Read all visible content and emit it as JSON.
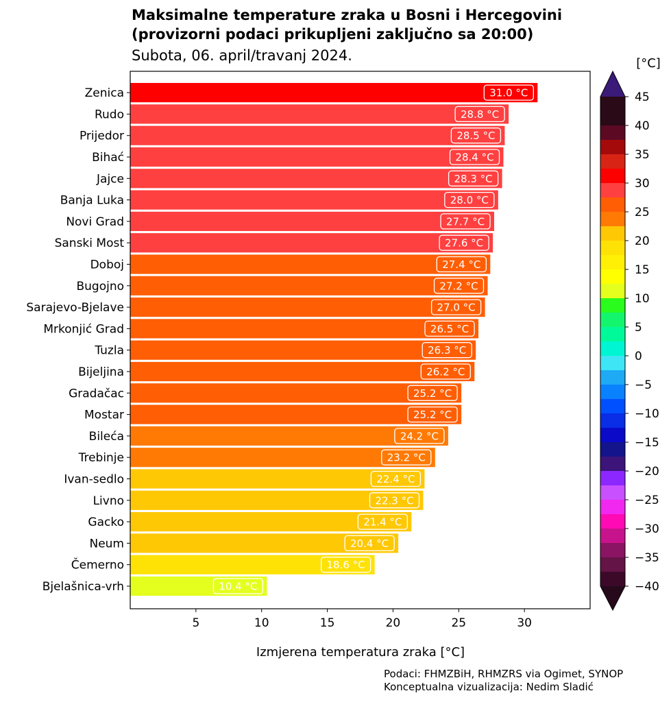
{
  "chart_data": {
    "type": "bar",
    "orientation": "horizontal",
    "title": "Maksimalne temperature zraka u Bosni i Hercegovini",
    "title_line2": "(provizorni podaci prikupljeni zaključno sa 20:00)",
    "subtitle": "Subota, 06. april/travanj 2024.",
    "xlabel": "Izmjerena temperatura zraka [°C]",
    "xlim": [
      0,
      35
    ],
    "xticks": [
      5,
      10,
      15,
      20,
      25,
      30
    ],
    "categories": [
      "Zenica",
      "Rudo",
      "Prijedor",
      "Bihać",
      "Jajce",
      "Banja Luka",
      "Novi Grad",
      "Sanski Most",
      "Doboj",
      "Bugojno",
      "Sarajevo-Bjelave",
      "Mrkonjić Grad",
      "Tuzla",
      "Bijeljina",
      "Gradačac",
      "Mostar",
      "Bileća",
      "Trebinje",
      "Ivan-sedlo",
      "Livno",
      "Gacko",
      "Neum",
      "Čemerno",
      "Bjelašnica-vrh"
    ],
    "values": [
      31.0,
      28.8,
      28.5,
      28.4,
      28.3,
      28.0,
      27.7,
      27.6,
      27.4,
      27.2,
      27.0,
      26.5,
      26.3,
      26.2,
      25.2,
      25.2,
      24.2,
      23.2,
      22.4,
      22.3,
      21.4,
      20.4,
      18.6,
      10.4
    ],
    "value_labels": [
      "31.0 °C",
      "28.8 °C",
      "28.5 °C",
      "28.4 °C",
      "28.3 °C",
      "28.0 °C",
      "27.7 °C",
      "27.6 °C",
      "27.4 °C",
      "27.2 °C",
      "27.0 °C",
      "26.5 °C",
      "26.3 °C",
      "26.2 °C",
      "25.2 °C",
      "25.2 °C",
      "24.2 °C",
      "23.2 °C",
      "22.4 °C",
      "22.3 °C",
      "21.4 °C",
      "20.4 °C",
      "18.6 °C",
      "10.4 °C"
    ],
    "grid": false,
    "colorbar": {
      "unit": "[°C]",
      "min": -40,
      "max": 45,
      "ticks": [
        45,
        40,
        35,
        30,
        25,
        20,
        15,
        10,
        5,
        0,
        -5,
        -10,
        -15,
        -20,
        -25,
        -30,
        -35,
        -40
      ],
      "tick_labels": [
        "45",
        "40",
        "35",
        "30",
        "25",
        "20",
        "15",
        "10",
        "5",
        "0",
        "−5",
        "−10",
        "−15",
        "−20",
        "−25",
        "−30",
        "−35",
        "−40"
      ],
      "over_color": "#3a1b78",
      "under_color": "#260a1c",
      "bins": [
        {
          "from": 40,
          "to": 45,
          "color": "#2a0a16"
        },
        {
          "from": 37.5,
          "to": 40,
          "color": "#5c0a24"
        },
        {
          "from": 35,
          "to": 37.5,
          "color": "#a40a0a"
        },
        {
          "from": 32.5,
          "to": 35,
          "color": "#d82414"
        },
        {
          "from": 30,
          "to": 32.5,
          "color": "#ff0000"
        },
        {
          "from": 27.5,
          "to": 30,
          "color": "#ff4040"
        },
        {
          "from": 25,
          "to": 27.5,
          "color": "#ff5e05"
        },
        {
          "from": 22.5,
          "to": 25,
          "color": "#ff7a05"
        },
        {
          "from": 20,
          "to": 22.5,
          "color": "#ffc805"
        },
        {
          "from": 17.5,
          "to": 20,
          "color": "#ffe205"
        },
        {
          "from": 15,
          "to": 17.5,
          "color": "#fff005"
        },
        {
          "from": 12.5,
          "to": 15,
          "color": "#ffff00"
        },
        {
          "from": 10,
          "to": 12.5,
          "color": "#e4ff1e"
        },
        {
          "from": 7.5,
          "to": 10,
          "color": "#2afc1e"
        },
        {
          "from": 5,
          "to": 7.5,
          "color": "#14f56e"
        },
        {
          "from": 2.5,
          "to": 5,
          "color": "#00fa9a"
        },
        {
          "from": 0,
          "to": 2.5,
          "color": "#00f5d2"
        },
        {
          "from": -2.5,
          "to": 0,
          "color": "#3ee6f5"
        },
        {
          "from": -5,
          "to": -2.5,
          "color": "#1eaaf5"
        },
        {
          "from": -7.5,
          "to": -5,
          "color": "#0a82ff"
        },
        {
          "from": -10,
          "to": -7.5,
          "color": "#0050ff"
        },
        {
          "from": -12.5,
          "to": -10,
          "color": "#0a2de6"
        },
        {
          "from": -15,
          "to": -12.5,
          "color": "#0a0ac8"
        },
        {
          "from": -17.5,
          "to": -15,
          "color": "#14148c"
        },
        {
          "from": -20,
          "to": -17.5,
          "color": "#3c147a"
        },
        {
          "from": -22.5,
          "to": -20,
          "color": "#8c28ff"
        },
        {
          "from": -25,
          "to": -22.5,
          "color": "#c850ff"
        },
        {
          "from": -27.5,
          "to": -25,
          "color": "#f028f0"
        },
        {
          "from": -30,
          "to": -27.5,
          "color": "#ff0ab4"
        },
        {
          "from": -32.5,
          "to": -30,
          "color": "#c8148c"
        },
        {
          "from": -35,
          "to": -32.5,
          "color": "#8c1464"
        },
        {
          "from": -37.5,
          "to": -35,
          "color": "#641446"
        },
        {
          "from": -40,
          "to": -37.5,
          "color": "#3c0a28"
        }
      ]
    }
  },
  "footer": {
    "line1": "Podaci: FHMZBiH, RHMZRS via Ogimet, SYNOP",
    "line2": "Konceptualna vizualizacija: Nedim Sladić"
  }
}
